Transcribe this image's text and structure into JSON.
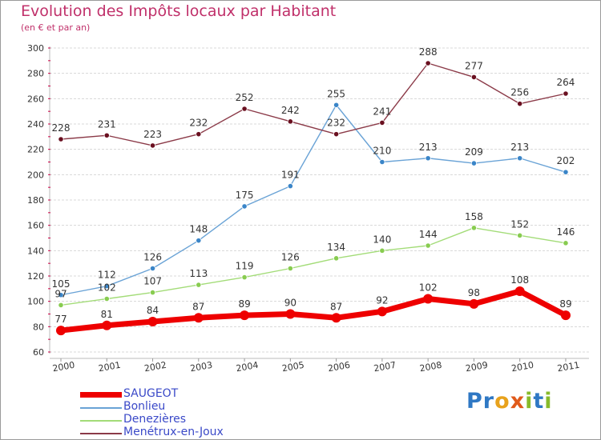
{
  "header": {
    "title": "Evolution des Impôts locaux par Habitant",
    "subtitle": "(en € et par an)"
  },
  "brand": {
    "logo_text": "Proxiti",
    "logo_letters": [
      {
        "ch": "P",
        "color": "#2f78c4"
      },
      {
        "ch": "r",
        "color": "#2f78c4"
      },
      {
        "ch": "o",
        "color": "#e8a21c"
      },
      {
        "ch": "x",
        "color": "#e05a1a"
      },
      {
        "ch": "i",
        "color": "#88bb2a"
      },
      {
        "ch": "t",
        "color": "#2f78c4"
      },
      {
        "ch": "i",
        "color": "#88bb2a"
      }
    ]
  },
  "colors": {
    "title": "#c0306a",
    "legend_text": "#3a49c8",
    "grid": "#d8d8d8",
    "axis_tick": "#cc0044"
  },
  "chart_data": {
    "type": "line",
    "title": "Evolution des Impôts locaux par Habitant",
    "subtitle": "(en € et par an)",
    "x": [
      "2000",
      "2001",
      "2002",
      "2003",
      "2004",
      "2005",
      "2006",
      "2007",
      "2008",
      "2009",
      "2010",
      "2011"
    ],
    "ylim": [
      60,
      300
    ],
    "yticks": [
      "60",
      "80",
      "100",
      "120",
      "140",
      "160",
      "180",
      "200",
      "220",
      "240",
      "260",
      "280",
      "300"
    ],
    "grid": "horizontal dashed",
    "legend_position": "bottom-left",
    "series": [
      {
        "name": "SAUGEOT",
        "values": [
          77,
          81,
          84,
          87,
          89,
          90,
          87,
          92,
          102,
          98,
          108,
          89
        ],
        "color": "#ee0000",
        "point_color": "#ee0000",
        "style": "thick"
      },
      {
        "name": "Bonlieu",
        "values": [
          105,
          112,
          126,
          148,
          175,
          191,
          255,
          210,
          213,
          209,
          213,
          202
        ],
        "color": "#6aa3d6",
        "point_color": "#3a85c8",
        "style": "thin"
      },
      {
        "name": "Denezières",
        "values": [
          97,
          102,
          107,
          113,
          119,
          126,
          134,
          140,
          144,
          158,
          152,
          146
        ],
        "color": "#a3dc78",
        "point_color": "#88cc50",
        "style": "thin"
      },
      {
        "name": "Menétrux-en-Joux",
        "values": [
          228,
          231,
          223,
          232,
          252,
          242,
          232,
          241,
          288,
          277,
          256,
          264
        ],
        "color": "#8b3a48",
        "point_color": "#6a1020",
        "style": "thin"
      }
    ]
  }
}
